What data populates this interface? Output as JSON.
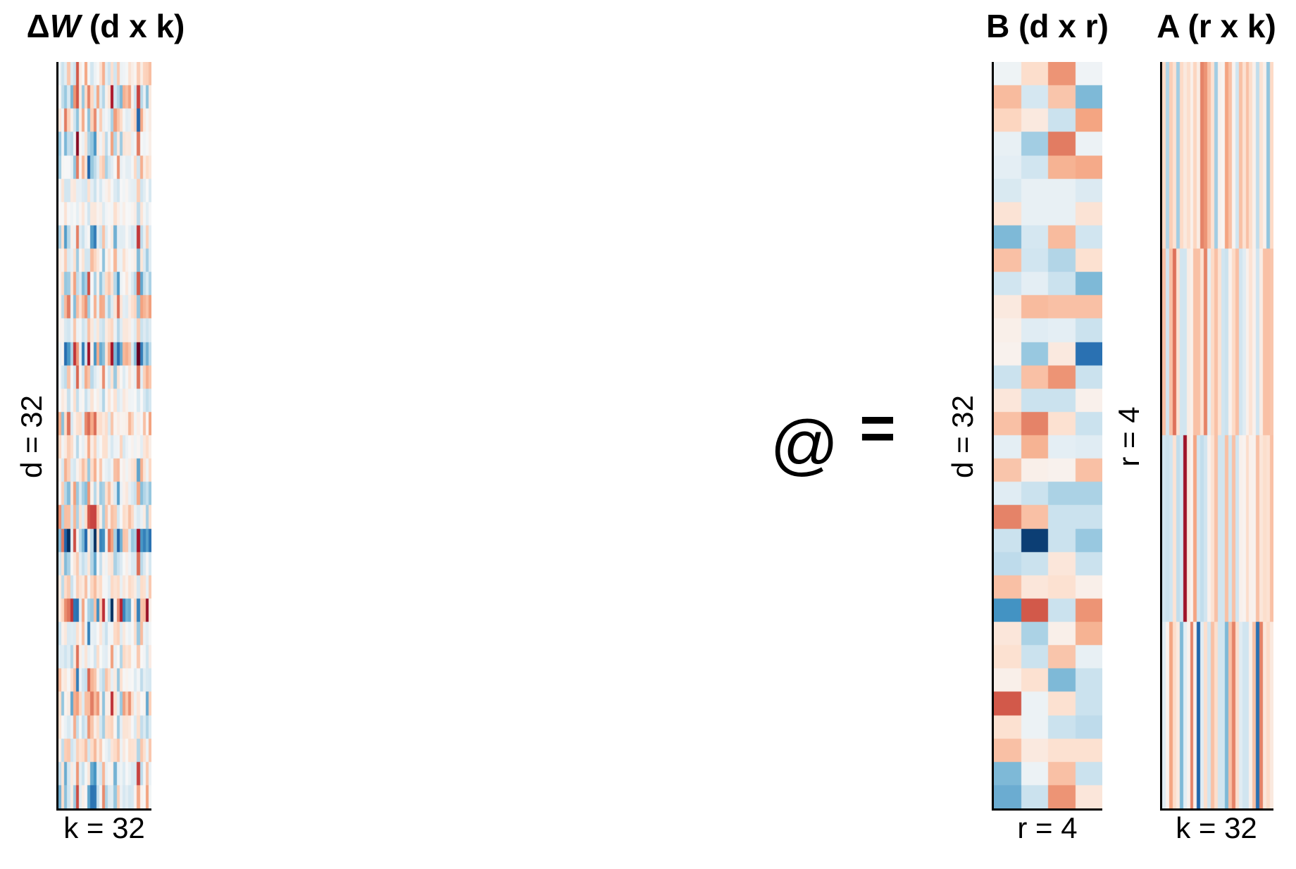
{
  "figure": {
    "operator_matmul": "@",
    "operator_equals": "="
  },
  "matrices": {
    "delta_w": {
      "title_delta": "Δ",
      "title_w": "W",
      "title_dims": " (d x k)",
      "left_label": "d = 32",
      "bottom_label": "k = 32",
      "rows": 32,
      "cols": 32
    },
    "b": {
      "title": "B (d x r)",
      "left_label": "d = 32",
      "bottom_label": "r = 4",
      "rows": 32,
      "cols": 4
    },
    "a": {
      "title": "A (r x k)",
      "left_label": "r = 4",
      "bottom_label": "k = 32",
      "rows": 4,
      "cols": 32
    }
  },
  "chart_data": {
    "type": "heatmap",
    "colormap": "RdBu_r",
    "vmin": -1,
    "vmax": 1,
    "delta_w_rule": "delta_w[i][j] = clip(1.8 * sum_r B[i][r]*A[r][j], -1, 1)",
    "B": [
      [
        -0.05,
        0.18,
        0.45,
        -0.04
      ],
      [
        0.32,
        -0.18,
        0.28,
        -0.45
      ],
      [
        0.22,
        0.1,
        -0.22,
        0.4
      ],
      [
        -0.08,
        -0.35,
        0.52,
        -0.06
      ],
      [
        -0.1,
        -0.2,
        0.35,
        0.38
      ],
      [
        -0.16,
        -0.08,
        -0.08,
        -0.14
      ],
      [
        0.14,
        -0.08,
        -0.08,
        0.14
      ],
      [
        -0.45,
        -0.18,
        0.32,
        -0.2
      ],
      [
        0.3,
        -0.2,
        -0.3,
        0.16
      ],
      [
        -0.2,
        -0.1,
        -0.22,
        -0.45
      ],
      [
        0.1,
        0.32,
        0.3,
        0.3
      ],
      [
        0.06,
        -0.12,
        -0.1,
        -0.22
      ],
      [
        0.04,
        -0.38,
        0.1,
        -0.75
      ],
      [
        -0.22,
        0.3,
        0.45,
        -0.22
      ],
      [
        0.12,
        -0.22,
        -0.22,
        0.05
      ],
      [
        0.3,
        0.5,
        0.16,
        -0.22
      ],
      [
        -0.1,
        0.35,
        -0.1,
        -0.12
      ],
      [
        0.28,
        0.06,
        0.04,
        0.3
      ],
      [
        -0.12,
        -0.22,
        -0.32,
        -0.32
      ],
      [
        0.5,
        0.3,
        -0.22,
        -0.22
      ],
      [
        -0.22,
        -0.95,
        -0.22,
        -0.38
      ],
      [
        -0.26,
        -0.22,
        0.12,
        -0.22
      ],
      [
        0.3,
        0.12,
        0.16,
        0.06
      ],
      [
        -0.6,
        0.62,
        -0.22,
        0.45
      ],
      [
        0.12,
        -0.32,
        0.06,
        0.35
      ],
      [
        0.16,
        -0.22,
        0.28,
        -0.08
      ],
      [
        0.06,
        0.16,
        -0.45,
        -0.22
      ],
      [
        0.62,
        -0.06,
        0.16,
        -0.22
      ],
      [
        0.16,
        -0.06,
        -0.22,
        -0.26
      ],
      [
        0.3,
        0.1,
        0.16,
        0.16
      ],
      [
        -0.45,
        -0.06,
        0.3,
        -0.22
      ],
      [
        -0.5,
        -0.22,
        0.45,
        0.12
      ]
    ],
    "A": [
      [
        0.2,
        -0.3,
        0.25,
        0.15,
        -0.35,
        0.2,
        0.1,
        0.18,
        0.05,
        0.22,
        0.08,
        0.5,
        0.45,
        0.3,
        0.15,
        -0.35,
        0.05,
        0.02,
        0.4,
        0.3,
        0.03,
        -0.2,
        0.3,
        0.15,
        0.3,
        0.18,
        0.05,
        -0.25,
        0.15,
        0.05,
        -0.4,
        0.2
      ],
      [
        0.3,
        -0.2,
        0.3,
        0.55,
        0.15,
        -0.2,
        -0.2,
        0.08,
        0.05,
        0.3,
        0.3,
        0.15,
        0.5,
        -0.1,
        0.2,
        0.3,
        0.15,
        -0.2,
        -0.22,
        0.05,
        0.2,
        0.3,
        -0.2,
        -0.12,
        0.05,
        0.15,
        0.05,
        -0.2,
        0.08,
        0.3,
        0.3,
        0.28
      ],
      [
        -0.2,
        -0.22,
        -0.2,
        0.15,
        -0.25,
        -0.2,
        0.85,
        0.1,
        0.03,
        0.4,
        -0.2,
        -0.25,
        -0.2,
        0.05,
        0.15,
        0.3,
        -0.2,
        -0.2,
        0.3,
        -0.2,
        0.3,
        -0.2,
        0.05,
        0.03,
        0.18,
        0.05,
        0.04,
        0.3,
        0.12,
        0.18,
        0.15,
        0.3
      ],
      [
        -0.12,
        0.04,
        0.4,
        0.18,
        0.1,
        -0.45,
        -0.1,
        0.04,
        0.5,
        0.05,
        -0.8,
        -0.12,
        0.18,
        -0.2,
        0.3,
        0.18,
        -0.2,
        -0.2,
        -0.45,
        0.3,
        0.5,
        0.18,
        -0.12,
        -0.2,
        -0.2,
        0.05,
        0.3,
        -0.75,
        0.5,
        0.12,
        0.2,
        0.1
      ]
    ]
  }
}
